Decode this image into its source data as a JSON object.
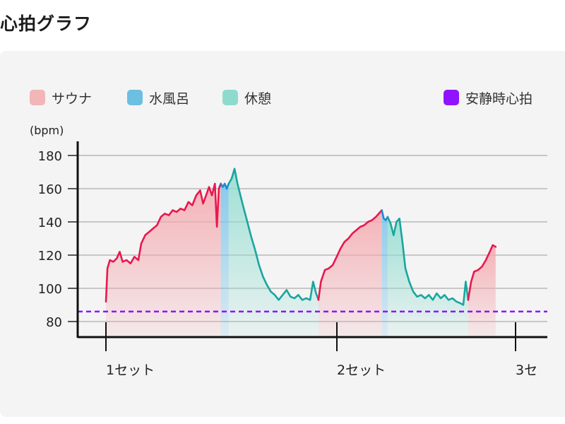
{
  "page_title": "心拍グラフ",
  "legend": [
    {
      "label": "サウナ",
      "color": "#f2b5b8"
    },
    {
      "label": "水風呂",
      "color": "#6cbfe0"
    },
    {
      "label": "休憩",
      "color": "#8edbce"
    },
    {
      "label": "安静時心拍",
      "color": "#9013fe"
    }
  ],
  "chart_data": {
    "type": "area",
    "title": "",
    "ylabel": "(bpm)",
    "xlabel": "",
    "ylim": [
      70,
      190
    ],
    "yticks": [
      80,
      100,
      120,
      140,
      160,
      180
    ],
    "grid": true,
    "legend_position": "top",
    "x_labels": [
      "1セット",
      "2セット",
      "3セ"
    ],
    "resting_heart_rate": 86,
    "colors": {
      "sauna": "#e8184f",
      "cold_bath": "#1e88d8",
      "rest": "#1aa5a0",
      "resting": "#9013fe"
    },
    "series": [
      {
        "name": "サウナ",
        "set": 1,
        "points": [
          [
            0,
            92
          ],
          [
            0.3,
            112
          ],
          [
            0.8,
            117
          ],
          [
            1.5,
            116
          ],
          [
            2.2,
            118
          ],
          [
            2.8,
            122
          ],
          [
            3.4,
            116
          ],
          [
            4.2,
            117
          ],
          [
            5.0,
            115
          ],
          [
            5.8,
            119
          ],
          [
            6.6,
            117
          ],
          [
            7.2,
            127
          ],
          [
            8.0,
            132
          ],
          [
            8.8,
            134
          ],
          [
            9.6,
            136
          ],
          [
            10.4,
            138
          ],
          [
            11.2,
            143
          ],
          [
            12.0,
            145
          ],
          [
            12.8,
            144
          ],
          [
            13.6,
            147
          ],
          [
            14.4,
            146
          ],
          [
            15.2,
            148
          ],
          [
            16.0,
            147
          ],
          [
            16.8,
            152
          ],
          [
            17.6,
            150
          ],
          [
            18.4,
            156
          ],
          [
            19.2,
            159
          ],
          [
            19.8,
            151
          ],
          [
            20.4,
            156
          ],
          [
            21.0,
            161
          ],
          [
            21.6,
            156
          ],
          [
            22.2,
            163
          ],
          [
            22.6,
            137
          ],
          [
            23.0,
            160
          ],
          [
            23.4,
            163
          ]
        ]
      },
      {
        "name": "水風呂",
        "set": 1,
        "points": [
          [
            23.4,
            163
          ],
          [
            23.8,
            161
          ],
          [
            24.2,
            163
          ],
          [
            24.6,
            160
          ],
          [
            25.0,
            163
          ]
        ]
      },
      {
        "name": "休憩",
        "set": 1,
        "points": [
          [
            25.0,
            163
          ],
          [
            25.6,
            166
          ],
          [
            26.2,
            172
          ],
          [
            26.8,
            163
          ],
          [
            27.4,
            156
          ],
          [
            28.0,
            149
          ],
          [
            28.8,
            140
          ],
          [
            29.6,
            131
          ],
          [
            30.4,
            123
          ],
          [
            31.2,
            114
          ],
          [
            32.0,
            107
          ],
          [
            32.8,
            102
          ],
          [
            33.6,
            98
          ],
          [
            34.4,
            96
          ],
          [
            35.2,
            93
          ],
          [
            36.0,
            96
          ],
          [
            36.8,
            99
          ],
          [
            37.6,
            95
          ],
          [
            38.4,
            94
          ],
          [
            39.2,
            96
          ],
          [
            40.0,
            93
          ],
          [
            40.8,
            94
          ],
          [
            41.6,
            93
          ],
          [
            42.2,
            104
          ],
          [
            42.8,
            97
          ],
          [
            43.3,
            93
          ]
        ]
      },
      {
        "name": "サウナ",
        "set": 2,
        "points": [
          [
            43.3,
            93
          ],
          [
            43.8,
            104
          ],
          [
            44.6,
            111
          ],
          [
            45.4,
            112
          ],
          [
            46.2,
            114
          ],
          [
            47.0,
            119
          ],
          [
            47.8,
            124
          ],
          [
            48.6,
            128
          ],
          [
            49.4,
            130
          ],
          [
            50.2,
            133
          ],
          [
            51.0,
            135
          ],
          [
            51.8,
            137
          ],
          [
            52.6,
            138
          ],
          [
            53.4,
            140
          ],
          [
            54.2,
            141
          ],
          [
            55.0,
            143
          ],
          [
            55.6,
            145
          ],
          [
            56.2,
            147
          ]
        ]
      },
      {
        "name": "水風呂",
        "set": 2,
        "points": [
          [
            56.2,
            147
          ],
          [
            56.6,
            142
          ],
          [
            57.0,
            141
          ],
          [
            57.4,
            143
          ]
        ]
      },
      {
        "name": "休憩",
        "set": 2,
        "points": [
          [
            57.4,
            143
          ],
          [
            58.0,
            139
          ],
          [
            58.6,
            132
          ],
          [
            59.2,
            140
          ],
          [
            59.8,
            142
          ],
          [
            60.4,
            128
          ],
          [
            61.0,
            112
          ],
          [
            61.8,
            104
          ],
          [
            62.6,
            98
          ],
          [
            63.4,
            95
          ],
          [
            64.2,
            96
          ],
          [
            65.0,
            94
          ],
          [
            65.8,
            96
          ],
          [
            66.6,
            93
          ],
          [
            67.4,
            97
          ],
          [
            68.2,
            94
          ],
          [
            69.0,
            96
          ],
          [
            69.8,
            93
          ],
          [
            70.6,
            94
          ],
          [
            71.4,
            92
          ],
          [
            72.2,
            91
          ],
          [
            72.8,
            90
          ],
          [
            73.3,
            104
          ],
          [
            73.8,
            93
          ]
        ]
      },
      {
        "name": "サウナ",
        "set": 3,
        "points": [
          [
            73.8,
            93
          ],
          [
            74.4,
            104
          ],
          [
            75.0,
            110
          ],
          [
            75.8,
            111
          ],
          [
            76.6,
            113
          ],
          [
            77.4,
            117
          ],
          [
            78.2,
            122
          ],
          [
            78.8,
            126
          ],
          [
            79.4,
            125
          ]
        ]
      }
    ]
  }
}
